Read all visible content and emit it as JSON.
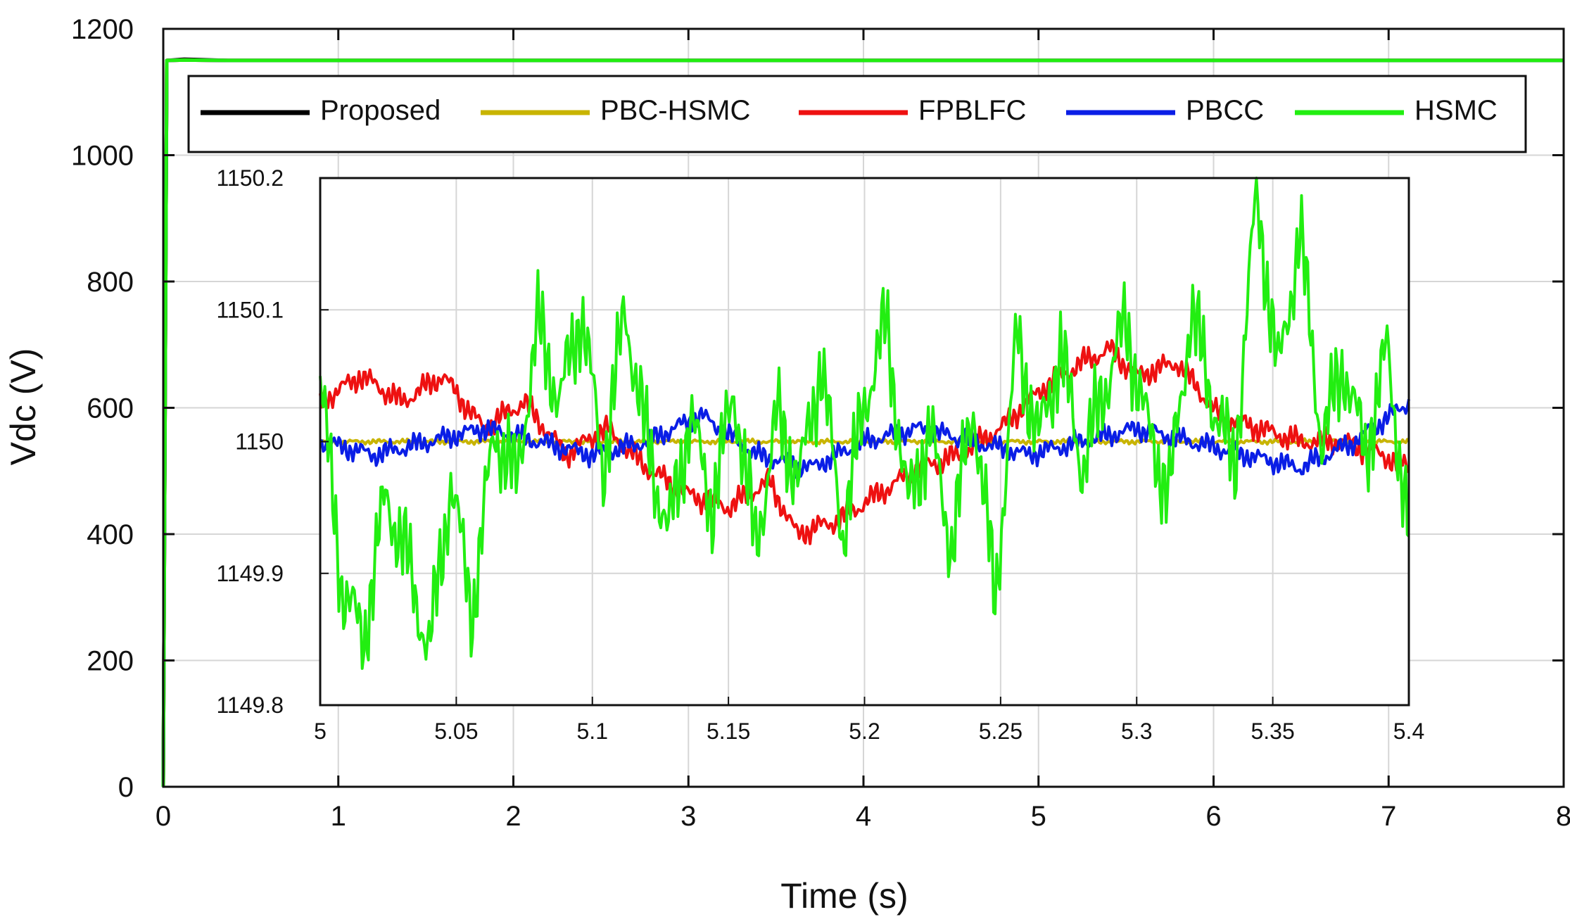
{
  "chart_data": {
    "type": "line",
    "title": "",
    "xlabel": "Time (s)",
    "ylabel": "Vdc (V)",
    "xlim": [
      0,
      8
    ],
    "ylim": [
      0,
      1200
    ],
    "x_ticks": [
      "0",
      "1",
      "2",
      "3",
      "4",
      "5",
      "6",
      "7",
      "8"
    ],
    "y_ticks": [
      "0",
      "200",
      "400",
      "600",
      "800",
      "1000",
      "1200"
    ],
    "grid": true,
    "legend_position": "top",
    "series": [
      {
        "name": "Proposed",
        "color": "#000000",
        "steady_value": 1150,
        "rise_time": 0.02,
        "overshoot_peak": 1152
      },
      {
        "name": "PBC-HSMC",
        "color": "#c8b400",
        "steady_value": 1150,
        "rise_time": 0.02,
        "overshoot_peak": 1150.5
      },
      {
        "name": "FPBLFC",
        "color": "#ee1111",
        "steady_value": 1150,
        "rise_time": 0.02,
        "overshoot_peak": 1150.5
      },
      {
        "name": "PBCC",
        "color": "#0a1ee6",
        "steady_value": 1150,
        "rise_time": 0.02,
        "overshoot_peak": 1150.5
      },
      {
        "name": "HSMC",
        "color": "#22ee11",
        "steady_value": 1150,
        "rise_time": 0.02,
        "overshoot_peak": 1150.5
      }
    ],
    "inset": {
      "xlim": [
        5,
        5.4
      ],
      "ylim": [
        1149.8,
        1150.2
      ],
      "x_ticks": [
        "5",
        "5.05",
        "5.1",
        "5.15",
        "5.2",
        "5.25",
        "5.3",
        "5.35",
        "5.4"
      ],
      "y_ticks": [
        "1149.8",
        "1149.9",
        "1150",
        "1150.1",
        "1150.2"
      ],
      "series": [
        {
          "name": "PBC-HSMC",
          "x": [
            5.0,
            5.05,
            5.1,
            5.15,
            5.2,
            5.25,
            5.3,
            5.35,
            5.4
          ],
          "y": [
            1150.0,
            1150.0,
            1150.0,
            1150.0,
            1150.0,
            1150.0,
            1150.0,
            1150.0,
            1150.0
          ]
        },
        {
          "name": "FPBLFC",
          "x": [
            5.0,
            5.015,
            5.03,
            5.045,
            5.06,
            5.075,
            5.09,
            5.105,
            5.12,
            5.135,
            5.15,
            5.165,
            5.175,
            5.19,
            5.205,
            5.22,
            5.235,
            5.25,
            5.265,
            5.28,
            5.29,
            5.3,
            5.315,
            5.33,
            5.345,
            5.36,
            5.375,
            5.39,
            5.4
          ],
          "y": [
            1150.03,
            1150.05,
            1150.03,
            1150.05,
            1150.01,
            1150.03,
            1149.99,
            1150.01,
            1149.98,
            1149.96,
            1149.95,
            1149.97,
            1149.93,
            1149.94,
            1149.96,
            1149.98,
            1149.99,
            1150.01,
            1150.04,
            1150.06,
            1150.07,
            1150.05,
            1150.06,
            1150.02,
            1150.01,
            1150.0,
            1150.0,
            1149.99,
            1149.98
          ]
        },
        {
          "name": "PBCC",
          "x": [
            5.0,
            5.02,
            5.04,
            5.06,
            5.08,
            5.1,
            5.12,
            5.14,
            5.16,
            5.18,
            5.2,
            5.22,
            5.24,
            5.26,
            5.28,
            5.3,
            5.32,
            5.34,
            5.36,
            5.38,
            5.4
          ],
          "y": [
            1150.0,
            1149.99,
            1150.0,
            1150.01,
            1150.0,
            1149.99,
            1150.0,
            1150.02,
            1149.99,
            1149.98,
            1150.0,
            1150.01,
            1150.0,
            1149.99,
            1150.0,
            1150.01,
            1150.0,
            1149.99,
            1149.98,
            1150.0,
            1150.03
          ]
        },
        {
          "name": "HSMC",
          "x": [
            5.0,
            5.008,
            5.016,
            5.024,
            5.032,
            5.04,
            5.048,
            5.056,
            5.064,
            5.072,
            5.08,
            5.088,
            5.096,
            5.104,
            5.112,
            5.12,
            5.128,
            5.136,
            5.144,
            5.152,
            5.16,
            5.168,
            5.176,
            5.184,
            5.192,
            5.2,
            5.208,
            5.216,
            5.224,
            5.232,
            5.24,
            5.248,
            5.256,
            5.264,
            5.272,
            5.28,
            5.288,
            5.296,
            5.304,
            5.312,
            5.32,
            5.328,
            5.336,
            5.344,
            5.352,
            5.36,
            5.368,
            5.376,
            5.384,
            5.392,
            5.4
          ],
          "y": [
            1150.05,
            1149.89,
            1149.85,
            1149.96,
            1149.91,
            1149.84,
            1149.97,
            1149.87,
            1150.01,
            1149.97,
            1150.09,
            1150.03,
            1150.1,
            1149.98,
            1150.1,
            1150.0,
            1149.93,
            1150.02,
            1149.95,
            1150.04,
            1149.92,
            1150.02,
            1149.97,
            1150.06,
            1149.93,
            1150.03,
            1150.09,
            1149.95,
            1150.01,
            1149.92,
            1150.03,
            1149.88,
            1150.08,
            1150.0,
            1150.07,
            1149.98,
            1150.04,
            1150.09,
            1150.01,
            1149.96,
            1150.1,
            1150.03,
            1149.98,
            1150.19,
            1150.05,
            1150.16,
            1150.0,
            1150.06,
            1149.99,
            1150.07,
            1149.93
          ]
        }
      ]
    }
  }
}
